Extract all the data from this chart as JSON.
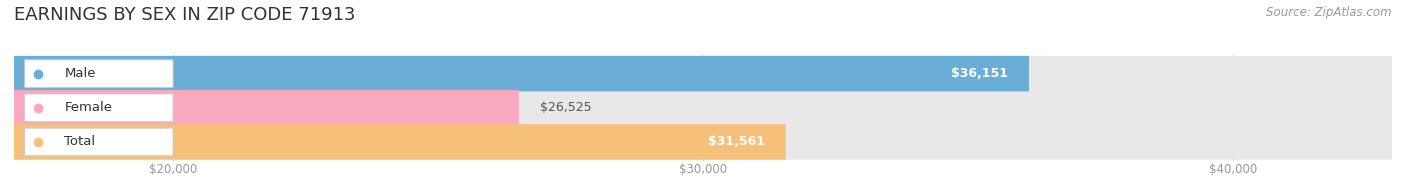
{
  "title": "EARNINGS BY SEX IN ZIP CODE 71913",
  "source": "Source: ZipAtlas.com",
  "categories": [
    "Male",
    "Female",
    "Total"
  ],
  "values": [
    36151,
    26525,
    31561
  ],
  "bar_colors": [
    "#6aaed6",
    "#f9a8c0",
    "#f5c07a"
  ],
  "bg_track_color": "#e8e8e8",
  "value_labels": [
    "$36,151",
    "$26,525",
    "$31,561"
  ],
  "x_ticks": [
    20000,
    30000,
    40000
  ],
  "x_tick_labels": [
    "$20,000",
    "$30,000",
    "$40,000"
  ],
  "xlim_min": 17000,
  "xlim_max": 43000,
  "background_color": "#ffffff",
  "title_fontsize": 13,
  "bar_height": 0.52,
  "label_fontsize": 9.5,
  "value_fontsize": 9,
  "source_fontsize": 8.5
}
